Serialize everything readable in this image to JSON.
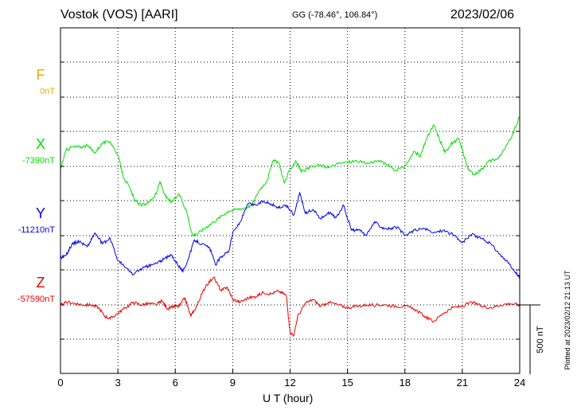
{
  "header": {
    "station": "Vostok (VOS)  [AARI]",
    "coords": "GG (-78.46°, 106.84°)",
    "date": "2023/02/06"
  },
  "footer": {
    "plotted_at": "Plotted at 2023/02/12 21:13 UT"
  },
  "colors": {
    "F": "#f5a800",
    "X": "#00dd00",
    "Y": "#0000ee",
    "Z": "#ee0000",
    "axis": "#000000"
  },
  "chart_data": {
    "type": "line",
    "title": "Vostok (VOS)  [AARI]",
    "xlabel": "U T (hour)",
    "ylabel": "",
    "xlim": [
      0,
      24
    ],
    "x_ticks": [
      0,
      3,
      6,
      9,
      12,
      15,
      18,
      21,
      24
    ],
    "x_tick_labels": [
      "0",
      "3",
      "6",
      "9",
      "12",
      "15",
      "18",
      "21",
      "24"
    ],
    "units": "nT",
    "scale_bar": {
      "value": 500,
      "label": "500 nT"
    },
    "grid": true,
    "series": [
      {
        "name": "F",
        "baseline": "0nT",
        "x": [],
        "values": []
      },
      {
        "name": "X",
        "baseline": "-7390nT",
        "x": [
          0,
          0.3,
          0.6,
          1.0,
          1.4,
          1.8,
          2.2,
          2.6,
          3.0,
          3.3,
          3.6,
          3.9,
          4.2,
          4.6,
          5.0,
          5.2,
          5.5,
          5.8,
          6.2,
          6.6,
          6.9,
          7.2,
          7.6,
          8.0,
          8.4,
          8.8,
          9.2,
          9.6,
          10.0,
          10.4,
          10.8,
          11.1,
          11.4,
          11.7,
          12.0,
          12.3,
          12.6,
          13.0,
          13.5,
          14.0,
          14.5,
          15.0,
          15.5,
          16.0,
          16.5,
          17.0,
          17.5,
          18.0,
          18.5,
          18.8,
          19.1,
          19.5,
          19.8,
          20.1,
          20.4,
          20.8,
          21.0,
          21.3,
          21.6,
          22.0,
          22.4,
          22.8,
          23.2,
          23.6,
          24.0
        ],
        "values": [
          -20,
          120,
          140,
          140,
          150,
          100,
          170,
          180,
          80,
          -80,
          -150,
          -250,
          -280,
          -260,
          -200,
          -110,
          -220,
          -260,
          -200,
          -330,
          -500,
          -480,
          -440,
          -400,
          -360,
          -320,
          -310,
          -300,
          -280,
          -170,
          -100,
          40,
          30,
          -120,
          -20,
          40,
          -40,
          -10,
          10,
          -10,
          20,
          30,
          40,
          20,
          40,
          20,
          -30,
          0,
          110,
          70,
          190,
          300,
          200,
          100,
          160,
          200,
          120,
          -20,
          -60,
          -20,
          40,
          50,
          120,
          220,
          360
        ]
      },
      {
        "name": "Y",
        "baseline": "-11210nT",
        "x": [
          0,
          0.3,
          0.6,
          1.0,
          1.4,
          1.8,
          2.2,
          2.6,
          3.0,
          3.4,
          3.8,
          4.2,
          4.6,
          5.0,
          5.4,
          5.8,
          6.1,
          6.4,
          6.7,
          7.0,
          7.4,
          7.8,
          8.1,
          8.4,
          8.8,
          9.0,
          9.4,
          9.8,
          10.2,
          10.6,
          11.0,
          11.4,
          11.8,
          12.2,
          12.5,
          12.8,
          13.2,
          13.6,
          14.0,
          14.4,
          14.8,
          15.2,
          15.6,
          16.0,
          16.4,
          16.8,
          17.2,
          17.6,
          18.0,
          18.5,
          19.0,
          19.5,
          20.0,
          20.5,
          21.0,
          21.5,
          22.0,
          22.5,
          23.0,
          23.4,
          23.8,
          24.0
        ],
        "values": [
          -160,
          -140,
          -60,
          -40,
          -80,
          20,
          -60,
          -20,
          -180,
          -230,
          -280,
          -240,
          -220,
          -200,
          -170,
          -140,
          -200,
          -260,
          -160,
          -30,
          -60,
          -90,
          -210,
          -150,
          -110,
          20,
          100,
          230,
          220,
          250,
          230,
          200,
          220,
          150,
          310,
          160,
          190,
          120,
          170,
          130,
          220,
          40,
          40,
          0,
          100,
          60,
          50,
          60,
          0,
          40,
          50,
          20,
          40,
          10,
          -50,
          10,
          -20,
          -60,
          -140,
          -200,
          -270,
          -300
        ]
      },
      {
        "name": "Z",
        "baseline": "-57590nT",
        "x": [
          0,
          0.4,
          0.8,
          1.2,
          1.6,
          2.0,
          2.3,
          2.6,
          3.0,
          3.4,
          3.8,
          4.2,
          4.6,
          5.0,
          5.3,
          5.6,
          5.9,
          6.2,
          6.5,
          6.8,
          7.0,
          7.3,
          7.6,
          8.0,
          8.4,
          8.7,
          9.0,
          9.4,
          9.8,
          10.2,
          10.6,
          11.0,
          11.4,
          11.8,
          12.0,
          12.2,
          12.4,
          12.8,
          13.2,
          13.6,
          14.0,
          14.5,
          15.0,
          15.5,
          16.0,
          16.5,
          17.0,
          17.5,
          18.0,
          18.5,
          19.0,
          19.5,
          20.0,
          20.5,
          21.0,
          21.5,
          22.0,
          22.5,
          23.0,
          23.5,
          24.0
        ],
        "values": [
          0,
          20,
          10,
          0,
          0,
          -20,
          -80,
          -100,
          -60,
          -20,
          20,
          0,
          10,
          0,
          30,
          -30,
          -10,
          -10,
          50,
          -80,
          -40,
          50,
          140,
          200,
          100,
          130,
          40,
          20,
          50,
          60,
          90,
          80,
          100,
          70,
          -200,
          -220,
          -80,
          10,
          40,
          -10,
          20,
          0,
          -20,
          -10,
          0,
          0,
          0,
          -10,
          -10,
          -30,
          -80,
          -120,
          -60,
          -20,
          -10,
          20,
          -10,
          -20,
          0,
          10,
          0
        ]
      }
    ]
  }
}
